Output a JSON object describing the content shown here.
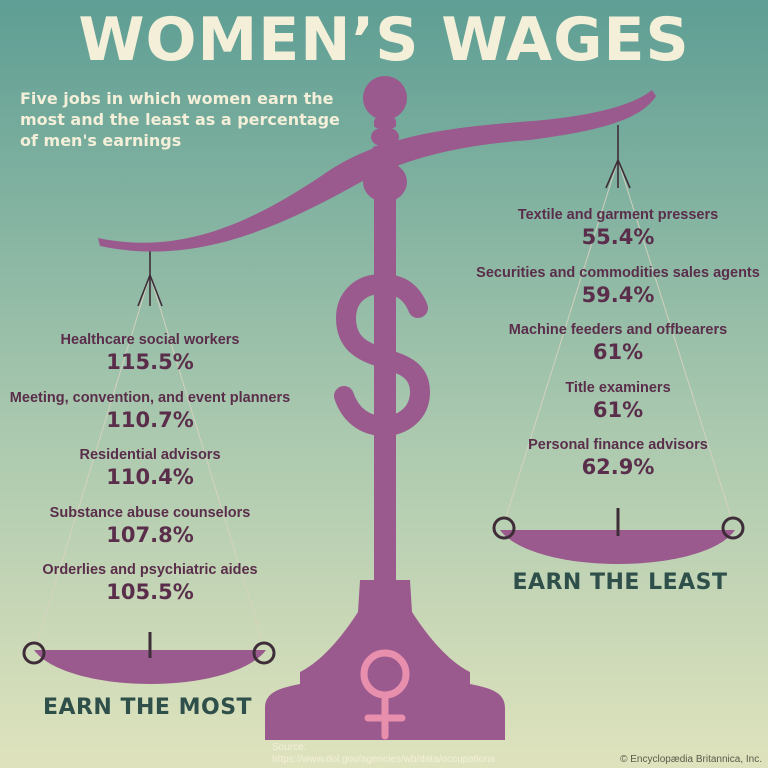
{
  "title": "WOMEN’S WAGES",
  "subtitle": "Five jobs in which women earn the most and the least as a percentage of men's earnings",
  "source_label": "Source:",
  "source_url": "https://www.dol.gov/agencies/wb/data/occupations",
  "credit": "© Encyclopædia Britannica, Inc.",
  "icons": {
    "scale": "balance-scale-icon",
    "dollar": "dollar-sign-icon",
    "female": "female-symbol-icon"
  },
  "colors": {
    "background_top": "#5e9e94",
    "background_bottom": "#dfe3bd",
    "scale": "#9a5a8e",
    "text_light": "#f4efd9",
    "text_dark": "#5a2e4b",
    "group_title": "#2e4f4a",
    "female_symbol": "#e88fae"
  },
  "chart_data": [
    {
      "type": "table",
      "title": "EARN THE MOST",
      "unit": "%",
      "categories": [
        "Healthcare social workers",
        "Meeting, convention, and event planners",
        "Residential advisors",
        "Substance abuse counselors",
        "Orderlies and psychiatric aides"
      ],
      "values": [
        115.5,
        110.7,
        110.4,
        107.8,
        105.5
      ],
      "value_labels": [
        "115.5%",
        "110.7%",
        "110.4%",
        "107.8%",
        "105.5%"
      ]
    },
    {
      "type": "table",
      "title": "EARN THE LEAST",
      "unit": "%",
      "categories": [
        "Textile and garment pressers",
        "Securities and commodities sales agents",
        "Machine feeders and offbearers",
        "Title examiners",
        "Personal finance advisors"
      ],
      "values": [
        55.4,
        59.4,
        61,
        61,
        62.9
      ],
      "value_labels": [
        "55.4%",
        "59.4%",
        "61%",
        "61%",
        "62.9%"
      ]
    }
  ]
}
